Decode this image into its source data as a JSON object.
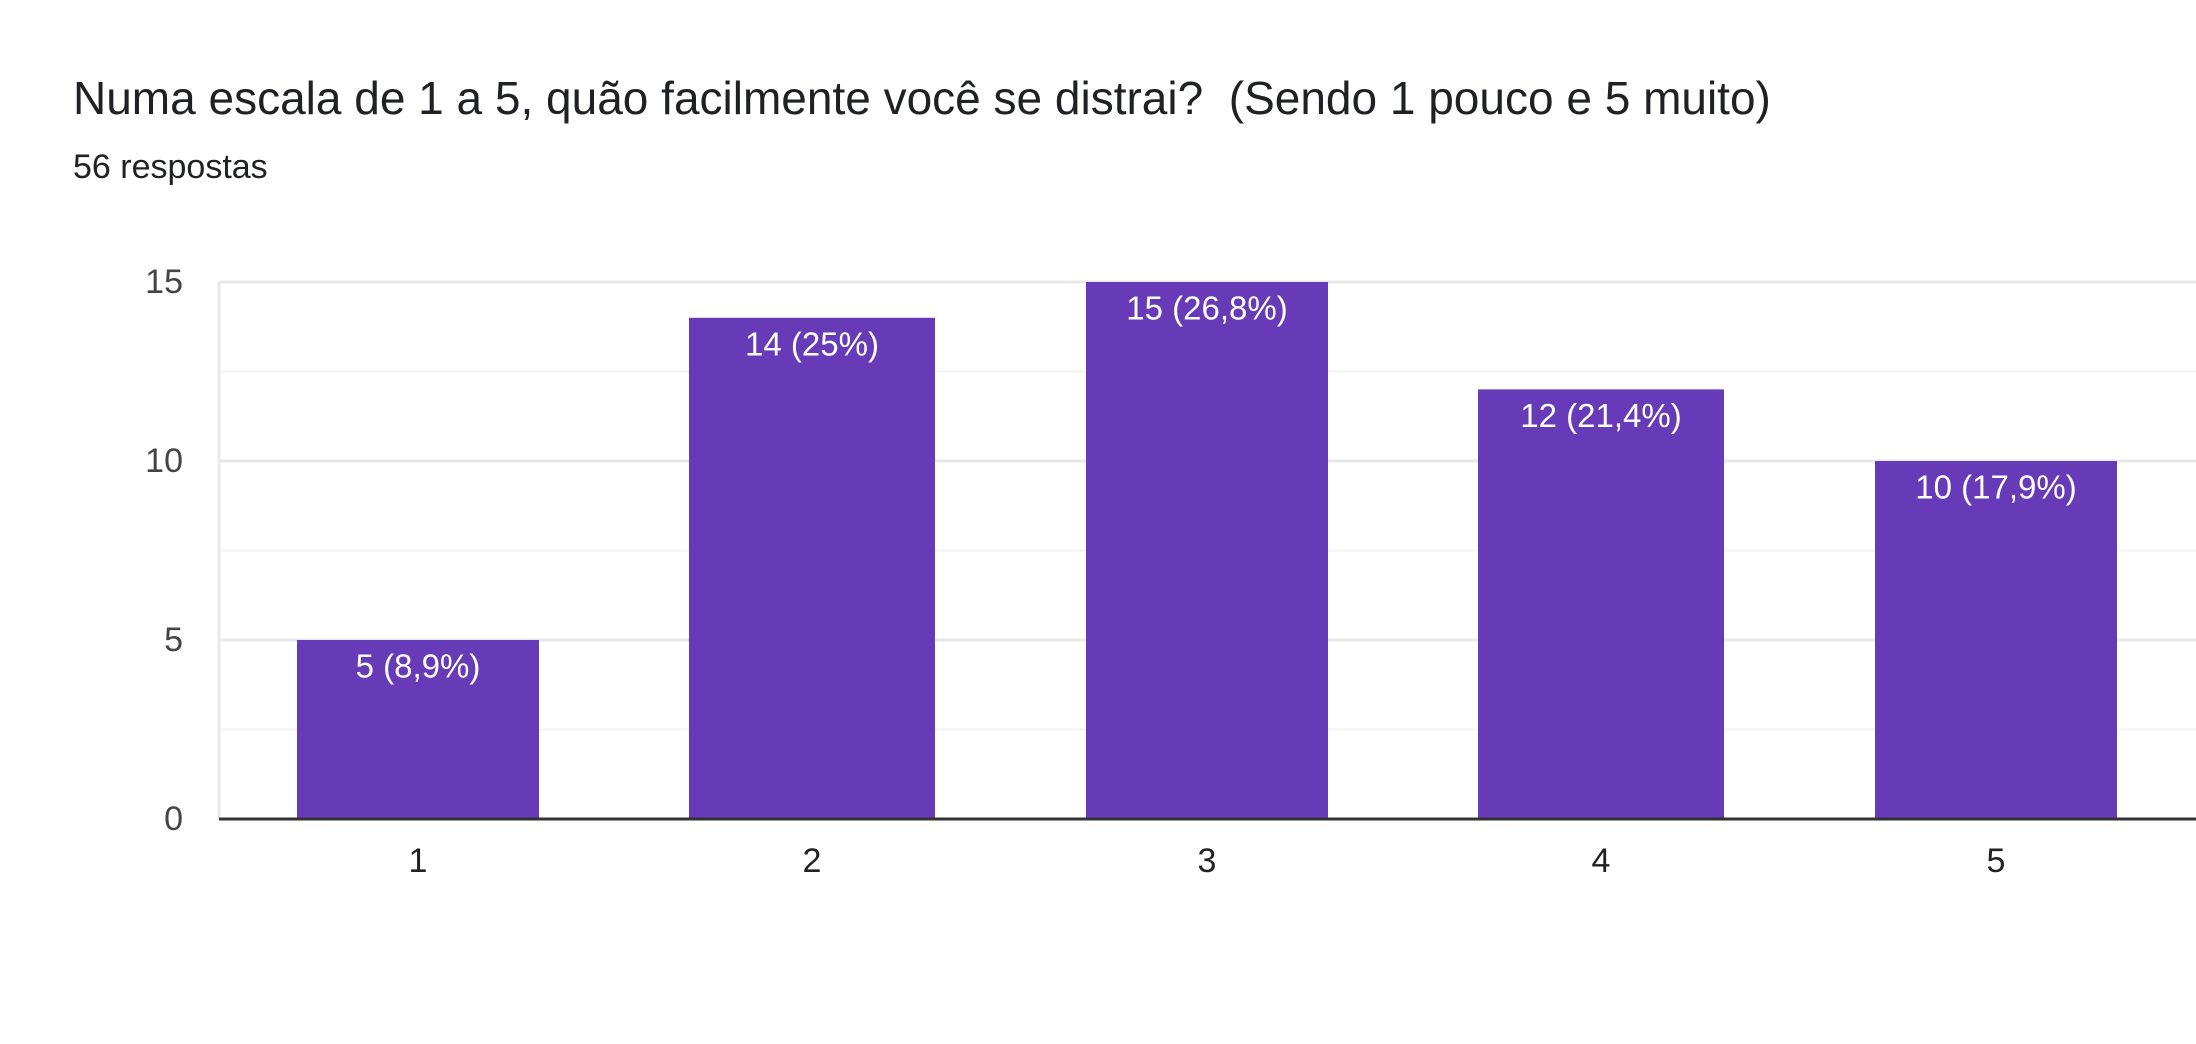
{
  "header": {
    "title": "Numa escala de 1 a 5, quão facilmente você se distrai?  (Sendo 1 pouco e 5 muito)",
    "subtitle": "56 respostas"
  },
  "colors": {
    "bar": "#673ab7",
    "grid_major": "#e8e8e8",
    "grid_minor": "#f3f3f3",
    "axis": "#333333"
  },
  "chart_data": {
    "type": "bar",
    "categories": [
      "1",
      "2",
      "3",
      "4",
      "5"
    ],
    "values": [
      5,
      14,
      15,
      12,
      10
    ],
    "data_labels": [
      "5 (8,9%)",
      "14 (25%)",
      "15 (26,8%)",
      "12 (21,4%)",
      "10 (17,9%)"
    ],
    "y_ticks": [
      "0",
      "5",
      "10",
      "15"
    ],
    "ylim": [
      0,
      15
    ],
    "grid": true,
    "legend": "none",
    "title": "Numa escala de 1 a 5, quão facilmente você se distrai?  (Sendo 1 pouco e 5 muito)",
    "subtitle": "56 respostas"
  }
}
